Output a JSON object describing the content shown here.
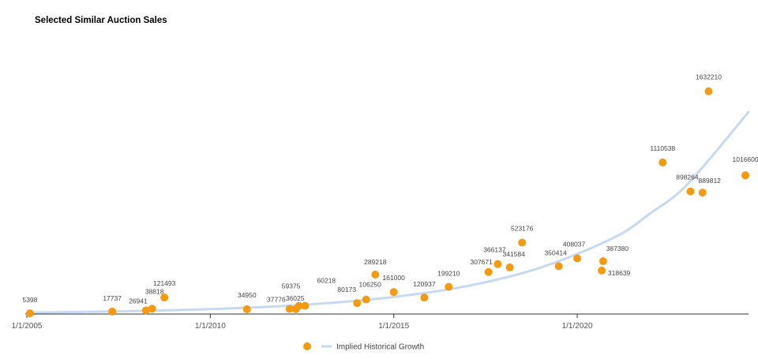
{
  "chart_data": {
    "type": "scatter",
    "title": "Selected Similar Auction Sales",
    "xlabel": "",
    "ylabel": "",
    "x_ticks": [
      "1/1/2005",
      "1/1/2010",
      "1/1/2015",
      "1/1/2020"
    ],
    "xlim": [
      "2005-01-01",
      "2024-09-01"
    ],
    "ylim": [
      0,
      1850000
    ],
    "grid": false,
    "legend": "bottom",
    "colors": {
      "points": "#F59A0C",
      "trend": "#C6D9F1",
      "axis": "#333333"
    },
    "series": [
      {
        "name": "",
        "type": "scatter",
        "points": [
          {
            "x": "2005-02-01",
            "y": 5398,
            "label": "5398"
          },
          {
            "x": "2007-05-01",
            "y": 17737,
            "label": "17737"
          },
          {
            "x": "2008-04-01",
            "y": 26941,
            "label": "26941"
          },
          {
            "x": "2008-06-01",
            "y": 38818,
            "label": "38818"
          },
          {
            "x": "2008-10-01",
            "y": 121493,
            "label": "121493"
          },
          {
            "x": "2011-01-01",
            "y": 34950,
            "label": "34950"
          },
          {
            "x": "2012-03-01",
            "y": 37776,
            "label": "37776"
          },
          {
            "x": "2012-05-01",
            "y": 36025,
            "label": "36025"
          },
          {
            "x": "2012-06-01",
            "y": 59375,
            "label": "59375"
          },
          {
            "x": "2012-08-01",
            "y": 60218,
            "label": "60218"
          },
          {
            "x": "2014-01-01",
            "y": 80173,
            "label": "80173"
          },
          {
            "x": "2014-04-01",
            "y": 106250,
            "label": "106250"
          },
          {
            "x": "2014-07-01",
            "y": 289218,
            "label": "289218"
          },
          {
            "x": "2015-01-01",
            "y": 161000,
            "label": "161000"
          },
          {
            "x": "2015-11-01",
            "y": 120937,
            "label": "120937"
          },
          {
            "x": "2016-07-01",
            "y": 199210,
            "label": "199210"
          },
          {
            "x": "2017-08-01",
            "y": 307671,
            "label": "307671"
          },
          {
            "x": "2017-11-01",
            "y": 366137,
            "label": "366137"
          },
          {
            "x": "2018-03-01",
            "y": 341584,
            "label": "341584"
          },
          {
            "x": "2018-07-01",
            "y": 523176,
            "label": "523176"
          },
          {
            "x": "2019-07-01",
            "y": 350414,
            "label": "350414"
          },
          {
            "x": "2020-01-01",
            "y": 408037,
            "label": "408037"
          },
          {
            "x": "2020-09-01",
            "y": 318639,
            "label": "318639"
          },
          {
            "x": "2020-09-15",
            "y": 387380,
            "label": "387380"
          },
          {
            "x": "2022-05-01",
            "y": 1110538,
            "label": "1110538"
          },
          {
            "x": "2023-02-01",
            "y": 898264,
            "label": "898264"
          },
          {
            "x": "2023-06-01",
            "y": 889812,
            "label": "889812"
          },
          {
            "x": "2023-08-01",
            "y": 1632210,
            "label": "1632210"
          },
          {
            "x": "2024-08-01",
            "y": 1016600,
            "label": "1016600"
          }
        ]
      },
      {
        "name": "Implied Historical Growth",
        "type": "line",
        "points": [
          {
            "x": "2005-01-01",
            "y": 10000
          },
          {
            "x": "2007-01-01",
            "y": 17000
          },
          {
            "x": "2009-01-01",
            "y": 28000
          },
          {
            "x": "2011-01-01",
            "y": 46000
          },
          {
            "x": "2013-01-01",
            "y": 76000
          },
          {
            "x": "2015-01-01",
            "y": 125000
          },
          {
            "x": "2017-01-01",
            "y": 205000
          },
          {
            "x": "2019-01-01",
            "y": 340000
          },
          {
            "x": "2021-01-01",
            "y": 560000
          },
          {
            "x": "2022-01-01",
            "y": 740000
          },
          {
            "x": "2023-01-01",
            "y": 950000
          },
          {
            "x": "2024-09-01",
            "y": 1480000
          }
        ]
      }
    ]
  }
}
